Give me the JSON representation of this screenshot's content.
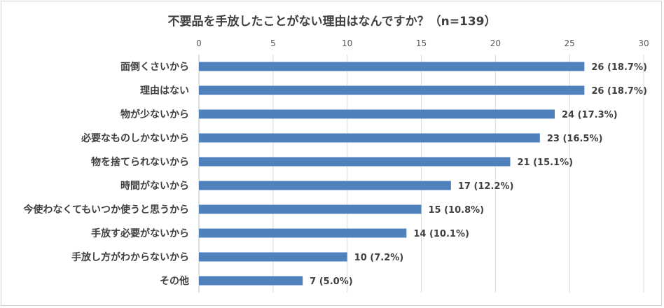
{
  "chart_data": {
    "type": "bar",
    "orientation": "horizontal",
    "title": "不要品を手放したことがない理由はなんですか？（n=139）",
    "categories": [
      "面倒くさいから",
      "理由はない",
      "物が少ないから",
      "必要なものしかないから",
      "物を捨てられないから",
      "時間がないから",
      "今使わなくてもいつか使うと思うから",
      "手放す必要がないから",
      "手放し方がわからないから",
      "その他"
    ],
    "values": [
      26,
      26,
      24,
      23,
      21,
      17,
      15,
      14,
      10,
      7
    ],
    "data_labels": [
      "26 (18.7%)",
      "26 (18.7%)",
      "24 (17.3%)",
      "23 (16.5%)",
      "21 (15.1%)",
      "17 (12.2%)",
      "15 (10.8%)",
      "14 (10.1%)",
      "10 (7.2%)",
      "7 (5.0%)"
    ],
    "xlim": [
      0,
      30
    ],
    "ticks": [
      "0",
      "5",
      "10",
      "15",
      "20",
      "25",
      "30"
    ],
    "axis_position": "top",
    "grid": true,
    "bar_color": "#4f81bd"
  }
}
